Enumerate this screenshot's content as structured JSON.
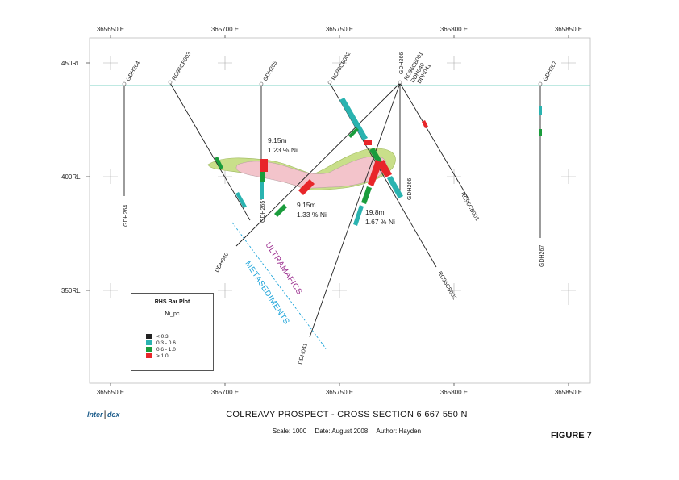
{
  "section": {
    "eastings_top": [
      "365650 E",
      "365700 E",
      "365750 E",
      "365800 E",
      "365850 E"
    ],
    "eastings_bottom": [
      "365650 E",
      "365700 E",
      "365750 E",
      "365800 E",
      "365850 E"
    ],
    "rls": [
      "450RL",
      "400RL",
      "350RL"
    ]
  },
  "holes": {
    "gdh264": "GDH264",
    "gdh264_end": "GDH264",
    "rc96cb003": "RC96CB003",
    "gdh265": "GDH265",
    "gdh265_end": "GDH265",
    "rc96cb002": "RC96CB002",
    "rc96cb002_end": "RC96CB002",
    "gdh266": "GDH266",
    "gdh266_end": "GDH266",
    "rc96cb001": "RC96CB001",
    "rc96cb001_end": "RC96CB001",
    "ddh040": "DDH040",
    "ddh040_end": "DDH040",
    "ddh041": "DDH041",
    "ddh041_end": "DDH041",
    "gdh267": "GDH267",
    "gdh267_end": "GDH267"
  },
  "intercepts": [
    {
      "length": "9.15m",
      "grade": "1.23 % Ni"
    },
    {
      "length": "9.15m",
      "grade": "1.33 % Ni"
    },
    {
      "length": "19.8m",
      "grade": "1.67 % Ni"
    }
  ],
  "zones": {
    "ultramafics": "ULTRAMAFICS",
    "metasediments": "METASEDIMENTS",
    "ultramafics_color": "#9b2d8e",
    "metasediments_color": "#1aa3d9"
  },
  "legend": {
    "title": "RHS Bar Plot",
    "field": "Ni_pc",
    "items": [
      {
        "label": "< 0.3",
        "color": "#222222"
      },
      {
        "label": "0.3 - 0.6",
        "color": "#2ab3b0"
      },
      {
        "label": "0.6 - 1.0",
        "color": "#1a9c3c"
      },
      {
        "label": "> 1.0",
        "color": "#e8262a"
      }
    ]
  },
  "colors": {
    "topography": "#7fd3c6",
    "mineralised_envelope": "#c9df8a",
    "high_grade_core": "#f3c4cb"
  },
  "footer": {
    "logo_left": "Inter",
    "logo_right": "dex",
    "title": "COLREAVY PROSPECT - CROSS SECTION 6 667 550 N",
    "scale": "Scale: 1000",
    "date": "Date: August 2008",
    "author": "Author: Hayden",
    "figure": "FIGURE 7"
  }
}
